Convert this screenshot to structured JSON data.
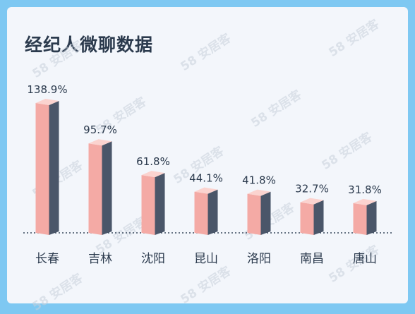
{
  "title": "经纪人微聊数据",
  "watermark": "58 安居客",
  "colors": {
    "front": "#f4aaa5",
    "side": "#4a5669",
    "top": "#fbd3cf",
    "background": "#7ec8f2",
    "card": "#f3f6fb"
  },
  "chart_data": {
    "type": "bar",
    "title": "经纪人微聊数据",
    "categories": [
      "长春",
      "吉林",
      "沈阳",
      "昆山",
      "洛阳",
      "南昌",
      "唐山"
    ],
    "values": [
      138.9,
      95.7,
      61.8,
      44.1,
      41.8,
      32.7,
      31.8
    ],
    "value_labels": [
      "138.9%",
      "95.7%",
      "61.8%",
      "44.1%",
      "41.8%",
      "32.7%",
      "31.8%"
    ],
    "xlabel": "",
    "ylabel": "",
    "ylim": [
      0,
      140
    ],
    "grid": false,
    "baseline": "dotted"
  }
}
